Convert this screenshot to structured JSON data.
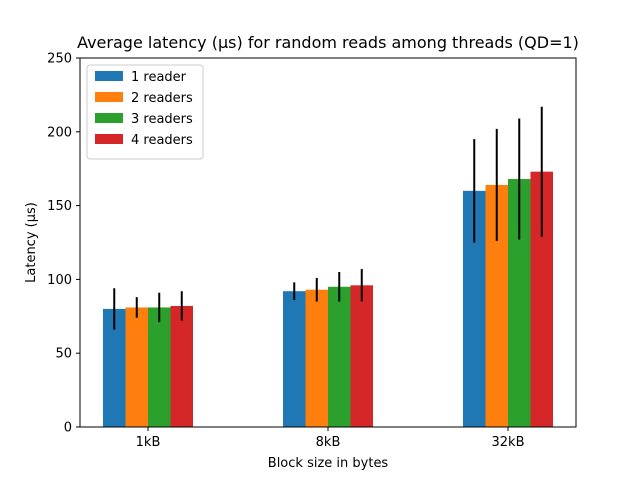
{
  "chart_data": {
    "type": "bar",
    "title": "Average latency (µs) for random reads among threads (QD=1)",
    "xlabel": "Block size in bytes",
    "ylabel": "Latency (µs)",
    "categories": [
      "1kB",
      "8kB",
      "32kB"
    ],
    "ylim": [
      0,
      250
    ],
    "yticks": [
      0,
      50,
      100,
      150,
      200,
      250
    ],
    "grid": false,
    "legend_position": "top-left",
    "series": [
      {
        "name": "1 reader",
        "color": "#1f77b4",
        "values": [
          80,
          92,
          160
        ],
        "errors": [
          14,
          6,
          35
        ]
      },
      {
        "name": "2 readers",
        "color": "#ff7f0e",
        "values": [
          81,
          93,
          164
        ],
        "errors": [
          7,
          8,
          38
        ]
      },
      {
        "name": "3 readers",
        "color": "#2ca02c",
        "values": [
          81,
          95,
          168
        ],
        "errors": [
          10,
          10,
          41
        ]
      },
      {
        "name": "4 readers",
        "color": "#d62728",
        "values": [
          82,
          96,
          173
        ],
        "errors": [
          10,
          11,
          44
        ]
      }
    ]
  }
}
